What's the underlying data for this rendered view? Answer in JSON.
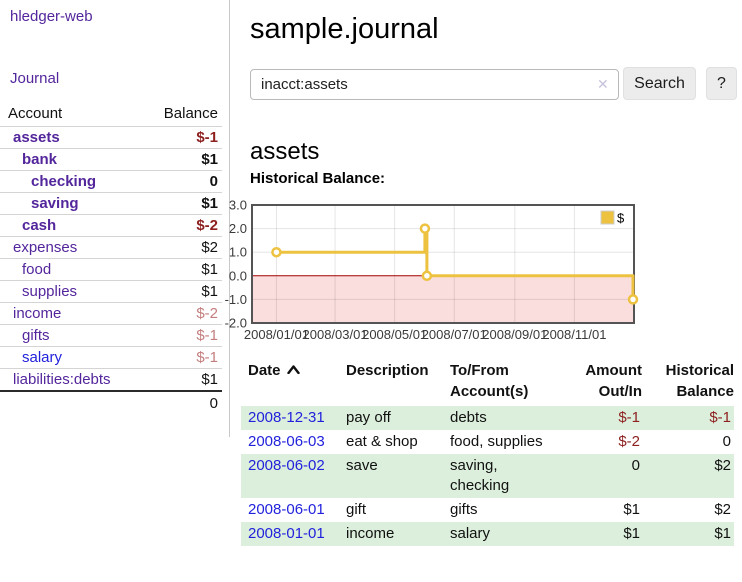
{
  "colors": {
    "link_purple": "#53269c",
    "link_blue": "#2222dd",
    "negative_strong": "#8d1f1f",
    "negative_dim": "#c47e7e",
    "row_green": "#dcefdc",
    "divider": "#c9c9c9",
    "row_border": "#d4d4d4",
    "button_bg": "#ececec",
    "chart_line": "#edc240",
    "chart_negative_fill": "#fadddd",
    "chart_zero_line": "#a40000",
    "chart_border": "#545454",
    "chart_grid": "rgba(0,0,0,0.10)",
    "chart_tick_text": "#3a3a3a"
  },
  "app": {
    "brand": "hledger-web"
  },
  "sidebar": {
    "nav": {
      "journal": "Journal"
    },
    "table": {
      "account_header": "Account",
      "balance_header": "Balance",
      "total": "0"
    },
    "accounts": [
      {
        "name": "assets",
        "level": 1,
        "bold": true,
        "balance": "$-1",
        "balance_style": "neg"
      },
      {
        "name": "bank",
        "level": 2,
        "bold": true,
        "balance": "$1",
        "balance_style": "std"
      },
      {
        "name": "checking",
        "level": 3,
        "bold": true,
        "balance": "0",
        "balance_style": "std"
      },
      {
        "name": "saving",
        "level": 3,
        "bold": true,
        "balance": "$1",
        "balance_style": "std"
      },
      {
        "name": "cash",
        "level": 2,
        "bold": true,
        "balance": "$-2",
        "balance_style": "neg"
      },
      {
        "name": "expenses",
        "level": 1,
        "bold": false,
        "balance": "$2",
        "balance_style": "std"
      },
      {
        "name": "food",
        "level": 2,
        "bold": false,
        "balance": "$1",
        "balance_style": "std"
      },
      {
        "name": "supplies",
        "level": 2,
        "bold": false,
        "balance": "$1",
        "balance_style": "std"
      },
      {
        "name": "income",
        "level": 1,
        "bold": false,
        "balance": "$-2",
        "balance_style": "dim"
      },
      {
        "name": "gifts",
        "level": 2,
        "bold": false,
        "balance": "$-1",
        "balance_style": "dim"
      },
      {
        "name": "salary",
        "level": 2,
        "bold": false,
        "balance": "$-1",
        "balance_style": "dim",
        "link_style": "unvisited"
      },
      {
        "name": "liabilities:debts",
        "level": 1,
        "bold": false,
        "balance": "$1",
        "balance_style": "std"
      }
    ]
  },
  "main": {
    "title": "sample.journal",
    "search": {
      "value": "inacct:assets",
      "clear_icon": "✕",
      "search_button": "Search",
      "help_button": "?"
    },
    "account_heading": "assets",
    "chart_title": "Historical Balance:"
  },
  "chart_data": {
    "type": "line",
    "step": true,
    "title": "Historical Balance",
    "series": [
      {
        "name": "$",
        "points": [
          [
            "2008-01-01",
            1.0
          ],
          [
            "2008-06-01",
            2.0
          ],
          [
            "2008-06-03",
            0.0
          ],
          [
            "2008-12-31",
            -1.0
          ]
        ]
      }
    ],
    "xlim": [
      "2007-12-07",
      "2009-01-01"
    ],
    "ylim": [
      -2,
      3
    ],
    "y_ticks": [
      {
        "v": 3,
        "label": "3.0"
      },
      {
        "v": 2,
        "label": "2.0"
      },
      {
        "v": 1,
        "label": "1.0"
      },
      {
        "v": 0,
        "label": "0.0"
      },
      {
        "v": -1,
        "label": "-1.0"
      },
      {
        "v": -2,
        "label": "-2.0"
      }
    ],
    "x_ticks": [
      {
        "date": "2008-01-01",
        "label": "2008/01/01"
      },
      {
        "date": "2008-03-01",
        "label": "2008/03/01"
      },
      {
        "date": "2008-05-01",
        "label": "2008/05/01"
      },
      {
        "date": "2008-07-01",
        "label": "2008/07/01"
      },
      {
        "date": "2008-09-01",
        "label": "2008/09/01"
      },
      {
        "date": "2008-11-01",
        "label": "2008/11/01"
      }
    ],
    "legend": {
      "label": "$",
      "position": "top-right"
    },
    "negative_region_below": 0,
    "grid": true
  },
  "register": {
    "headers": {
      "date": "Date",
      "description": "Description",
      "accounts": "To/From\nAccount(s)",
      "amount": "Amount\nOut/In",
      "balance": "Historical\nBalance"
    },
    "sort_icon": "chevron-up",
    "rows": [
      {
        "date": "2008-12-31",
        "description": "pay off",
        "accounts": "debts",
        "amount": "$-1",
        "amount_neg": true,
        "balance": "$-1",
        "balance_neg": true
      },
      {
        "date": "2008-06-03",
        "description": "eat & shop",
        "accounts": "food, supplies",
        "amount": "$-2",
        "amount_neg": true,
        "balance": "0",
        "balance_neg": false
      },
      {
        "date": "2008-06-02",
        "description": "save",
        "accounts": "saving,\nchecking",
        "amount": "0",
        "amount_neg": false,
        "balance": "$2",
        "balance_neg": false
      },
      {
        "date": "2008-06-01",
        "description": "gift",
        "accounts": "gifts",
        "amount": "$1",
        "amount_neg": false,
        "balance": "$2",
        "balance_neg": false
      },
      {
        "date": "2008-01-01",
        "description": "income",
        "accounts": "salary",
        "amount": "$1",
        "amount_neg": false,
        "balance": "$1",
        "balance_neg": false
      }
    ]
  }
}
